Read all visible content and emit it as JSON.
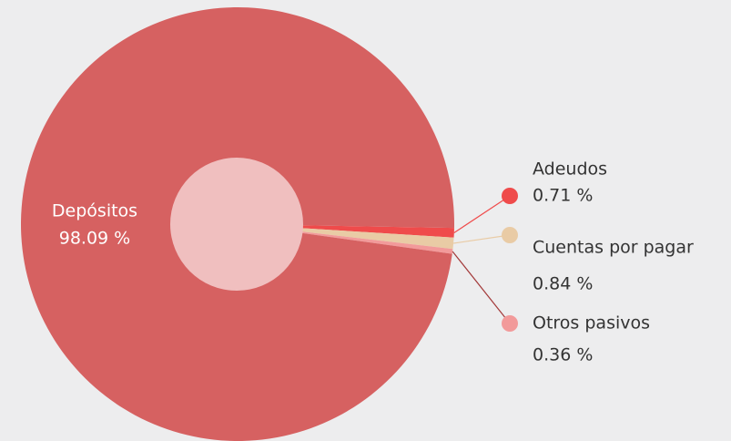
{
  "chart_data": {
    "type": "pie",
    "categories": [
      "Depósitos",
      "Adeudos",
      "Cuentas por pagar",
      "Otros pasivos"
    ],
    "values": [
      98.09,
      0.71,
      0.84,
      0.36
    ],
    "value_labels": [
      "98.09 %",
      "0.71 %",
      "0.84 %",
      "0.36 %"
    ],
    "colors": [
      "#d66161",
      "#ef4b4b",
      "#e9cba5",
      "#f29a9a"
    ]
  }
}
